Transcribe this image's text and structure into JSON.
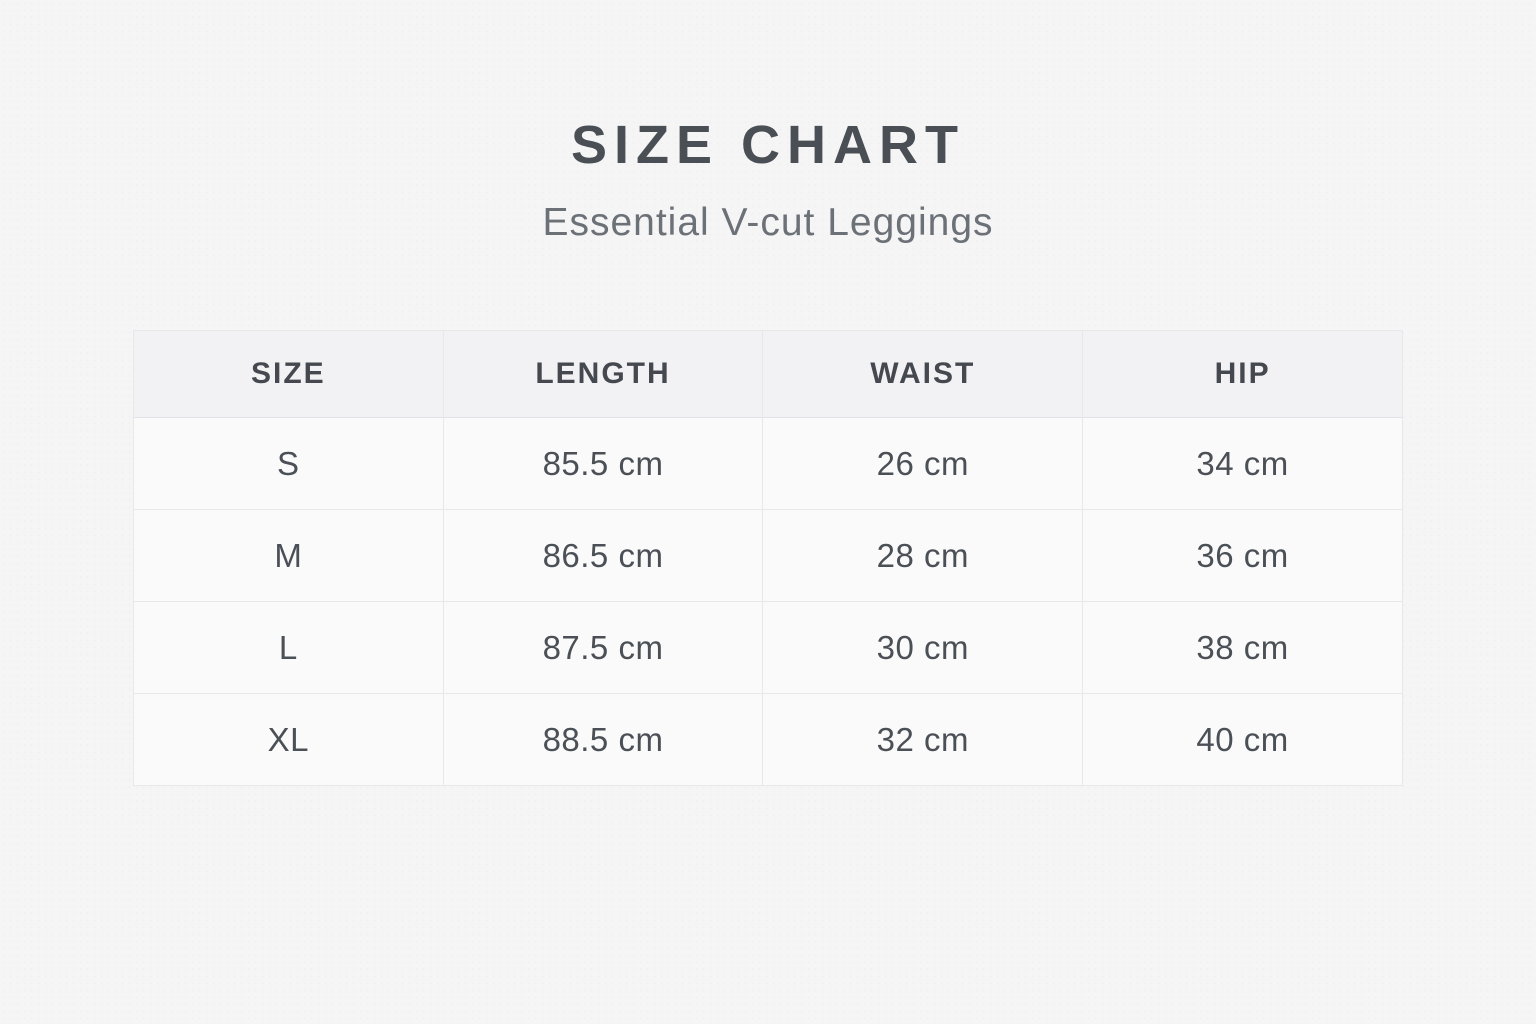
{
  "header": {
    "title": "SIZE CHART",
    "subtitle": "Essential V-cut Leggings"
  },
  "chart_data": {
    "type": "table",
    "title": "SIZE CHART",
    "subtitle": "Essential V-cut Leggings",
    "columns": [
      "SIZE",
      "LENGTH",
      "WAIST",
      "HIP"
    ],
    "rows": [
      [
        "S",
        "85.5 cm",
        "26 cm",
        "34 cm"
      ],
      [
        "M",
        "86.5 cm",
        "28 cm",
        "36 cm"
      ],
      [
        "L",
        "87.5 cm",
        "30 cm",
        "38 cm"
      ],
      [
        "XL",
        "88.5 cm",
        "32 cm",
        "40 cm"
      ]
    ],
    "series": [
      {
        "name": "LENGTH",
        "unit": "cm",
        "values": [
          85.5,
          86.5,
          87.5,
          88.5
        ]
      },
      {
        "name": "WAIST",
        "unit": "cm",
        "values": [
          26,
          28,
          30,
          32
        ]
      },
      {
        "name": "HIP",
        "unit": "cm",
        "values": [
          34,
          36,
          38,
          40
        ]
      }
    ],
    "sizes": [
      "S",
      "M",
      "L",
      "XL"
    ]
  },
  "colors": {
    "page_bg": "#f5f5f6",
    "title_text": "#4a4f55",
    "subtitle_text": "#6c7177",
    "header_bg": "#f2f2f4",
    "cell_bg": "#fafafb",
    "border": "#e7e8ea"
  }
}
